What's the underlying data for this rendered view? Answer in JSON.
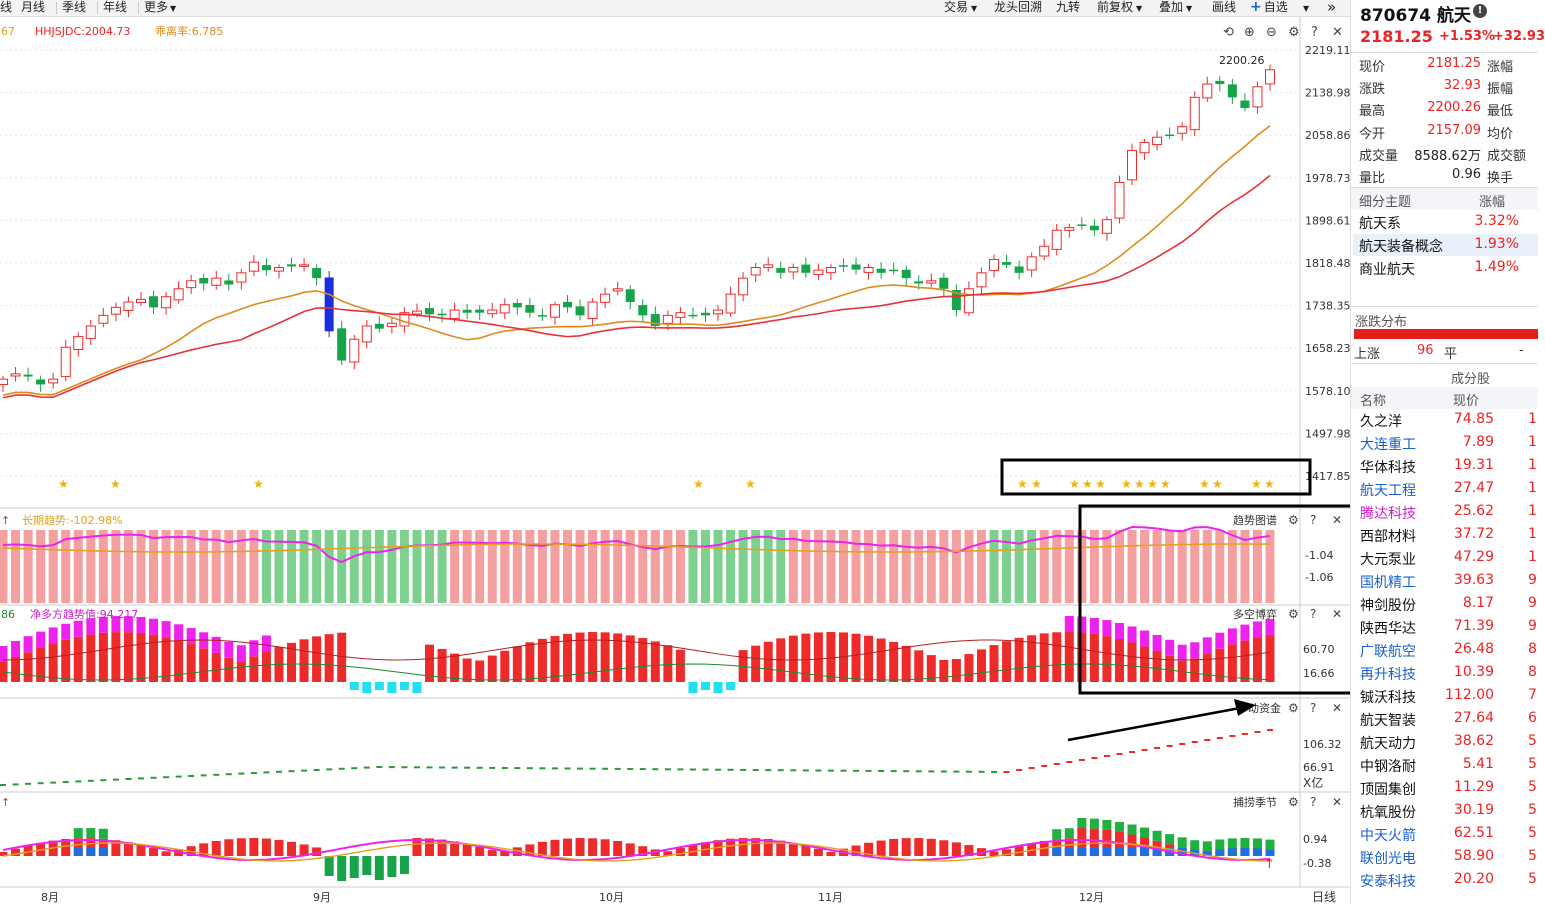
{
  "toolbar": {
    "left_items": [
      "线",
      "月线",
      "季线",
      "年线",
      "更多"
    ],
    "right_items": [
      "交易",
      "龙头回溯",
      "九转",
      "前复权",
      "叠加",
      "画线"
    ],
    "watchlist_button": "自选",
    "expand_glyph": "»"
  },
  "main_chart": {
    "indicator_prefix": "67",
    "indicator_hhjsjdc": "HHJSJDC:2004.73",
    "indicator_deviation": "乖离率:6.785",
    "high_marker": "2200.26",
    "price_ticks": [
      "2219.11",
      "2138.98",
      "2058.86",
      "1978.73",
      "1898.61",
      "1818.48",
      "1738.35",
      "1658.23",
      "1578.10",
      "1497.98",
      "1417.85"
    ],
    "price_min": 1417.85,
    "price_max": 2219.11
  },
  "panel_trend": {
    "title": "趋势图谱",
    "indicator": "长期趋势:-102.98%",
    "ticks": [
      "-1.04",
      "-1.06"
    ]
  },
  "panel_game": {
    "title": "多空博弈",
    "indicator_prefix": "86",
    "indicator": "净多方趋势值:94.217",
    "ticks": [
      "60.70",
      "16.66"
    ]
  },
  "panel_fund": {
    "title": "动资金",
    "ticks": [
      "106.32",
      "66.91"
    ],
    "unit": "X亿"
  },
  "panel_season": {
    "title": "捕捞季节",
    "ticks": [
      "0.94",
      "-0.38"
    ]
  },
  "x_axis": {
    "months": [
      "8月",
      "9月",
      "10月",
      "11月",
      "12月"
    ],
    "period": "日线"
  },
  "colors": {
    "up": "#ee2b2b",
    "down": "#16a34a",
    "ma_orange": "#e08a1e",
    "ma_red": "#e8313a",
    "magenta": "#ee22ee",
    "pink_bg": "#f4a0a0",
    "green_bg": "#7dd08d",
    "cyan": "#22e0f0"
  },
  "sidebar": {
    "code": "870674",
    "name": "航天",
    "price": "2181.25",
    "change_pct": "+1.53%",
    "change_abs": "+32.93",
    "quote_rows": [
      {
        "label": "现价",
        "value": "2181.25",
        "label2": "涨幅",
        "color": "#e22"
      },
      {
        "label": "涨跌",
        "value": "32.93",
        "label2": "振幅",
        "color": "#e22"
      },
      {
        "label": "最高",
        "value": "2200.26",
        "label2": "最低",
        "color": "#e22"
      },
      {
        "label": "今开",
        "value": "2157.09",
        "label2": "均价",
        "color": "#e22"
      },
      {
        "label": "成交量",
        "value": "8588.62万",
        "label2": "成交额",
        "color": "#222"
      },
      {
        "label": "量比",
        "value": "0.96",
        "label2": "换手",
        "color": "#222"
      }
    ],
    "themes_header": {
      "name": "细分主题",
      "change": "涨幅"
    },
    "themes": [
      {
        "name": "航天系",
        "change": "3.32%"
      },
      {
        "name": "航天装备概念",
        "change": "1.93%"
      },
      {
        "name": "商业航天",
        "change": "1.49%"
      }
    ],
    "distribution": {
      "title": "涨跌分布",
      "up_label": "上涨",
      "up_count": "96",
      "flat_label": "平",
      "flat_dash": "-"
    },
    "constituents_title": "成分股",
    "constituents_header": {
      "name": "名称",
      "price": "现价"
    },
    "constituents": [
      {
        "name": "久之洋",
        "price": "74.85",
        "chg": "1",
        "blue": false
      },
      {
        "name": "大连重工",
        "price": "7.89",
        "chg": "1",
        "blue": true
      },
      {
        "name": "华体科技",
        "price": "19.31",
        "chg": "1",
        "blue": false
      },
      {
        "name": "航天工程",
        "price": "27.47",
        "chg": "1",
        "blue": true
      },
      {
        "name": "腾达科技",
        "price": "25.62",
        "chg": "1",
        "blue": false,
        "magenta": true
      },
      {
        "name": "西部材料",
        "price": "37.72",
        "chg": "1",
        "blue": false
      },
      {
        "name": "大元泵业",
        "price": "47.29",
        "chg": "1",
        "blue": false
      },
      {
        "name": "国机精工",
        "price": "39.63",
        "chg": "9",
        "blue": true
      },
      {
        "name": "神剑股份",
        "price": "8.17",
        "chg": "9",
        "blue": false
      },
      {
        "name": "陕西华达",
        "price": "71.39",
        "chg": "9",
        "blue": false
      },
      {
        "name": "广联航空",
        "price": "26.48",
        "chg": "8",
        "blue": true
      },
      {
        "name": "再升科技",
        "price": "10.39",
        "chg": "8",
        "blue": true
      },
      {
        "name": "铖沃科技",
        "price": "112.00",
        "chg": "7",
        "blue": false
      },
      {
        "name": "航天智装",
        "price": "27.64",
        "chg": "6",
        "blue": false
      },
      {
        "name": "航天动力",
        "price": "38.62",
        "chg": "5",
        "blue": false
      },
      {
        "name": "中钢洛耐",
        "price": "5.41",
        "chg": "5",
        "blue": false
      },
      {
        "name": "顶固集创",
        "price": "11.29",
        "chg": "5",
        "blue": false
      },
      {
        "name": "杭氧股份",
        "price": "30.19",
        "chg": "5",
        "blue": false
      },
      {
        "name": "中天火箭",
        "price": "62.51",
        "chg": "5",
        "blue": true
      },
      {
        "name": "联创光电",
        "price": "58.90",
        "chg": "5",
        "blue": true
      },
      {
        "name": "安泰科技",
        "price": "20.20",
        "chg": "5",
        "blue": true
      }
    ]
  }
}
